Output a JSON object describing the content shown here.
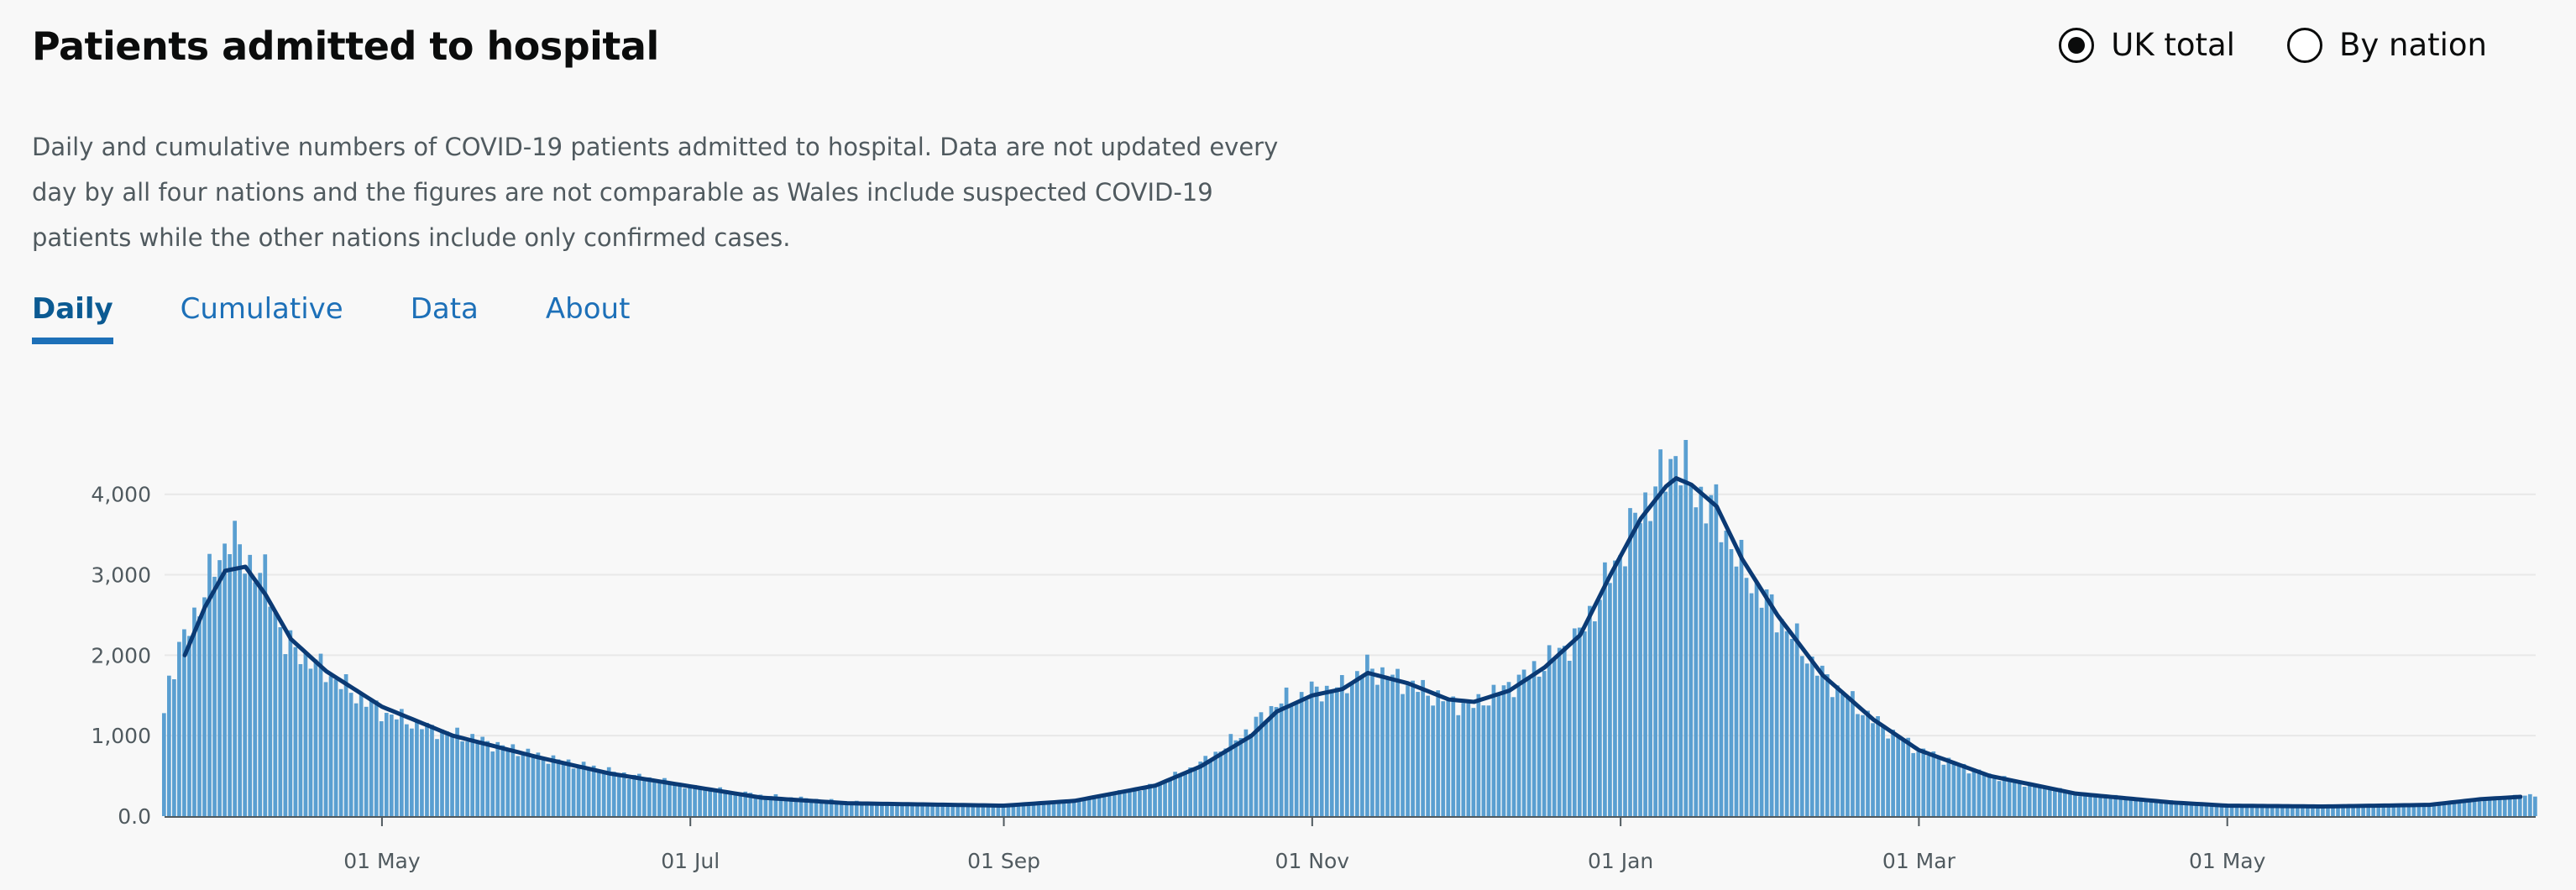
{
  "header": {
    "title": "Patients admitted to hospital",
    "radio_options": [
      {
        "label": "UK total",
        "selected": true
      },
      {
        "label": "By nation",
        "selected": false
      }
    ]
  },
  "description": "Daily and cumulative numbers of COVID-19 patients admitted to hospital. Data are not updated every day by all four nations and the figures are not comparable as Wales include suspected COVID-19 patients while the other nations include only confirmed cases.",
  "tabs": [
    {
      "label": "Daily",
      "active": true
    },
    {
      "label": "Cumulative",
      "active": false
    },
    {
      "label": "Data",
      "active": false
    },
    {
      "label": "About",
      "active": false
    }
  ],
  "colors": {
    "bars": "#5a9fd1",
    "average_line": "#0b3a74",
    "gridline": "#e8e8e8",
    "axis": "#505a5f",
    "tab_link": "#1d70b8"
  },
  "chart_data": {
    "type": "bar",
    "x_start": "2020-03-19",
    "x_end": "2021-07-01",
    "x_ticks": [
      {
        "date": "2020-05-01",
        "label": "01 May"
      },
      {
        "date": "2020-07-01",
        "label": "01 Jul"
      },
      {
        "date": "2020-09-01",
        "label": "01 Sep"
      },
      {
        "date": "2020-11-01",
        "label": "01 Nov"
      },
      {
        "date": "2021-01-01",
        "label": "01 Jan"
      },
      {
        "date": "2021-03-01",
        "label": "01 Mar"
      },
      {
        "date": "2021-05-01",
        "label": "01 May"
      }
    ],
    "y_ticks": [
      {
        "value": 0,
        "label": "0.0"
      },
      {
        "value": 1000,
        "label": "1,000"
      },
      {
        "value": 2000,
        "label": "2,000"
      },
      {
        "value": 3000,
        "label": "3,000"
      },
      {
        "value": 4000,
        "label": "4,000"
      }
    ],
    "ylim": [
      0,
      4300
    ],
    "grid": true,
    "series": [
      {
        "kind": "bars",
        "anchors": [
          [
            "2020-03-19",
            1280
          ],
          [
            "2020-03-20",
            1720
          ],
          [
            "2020-03-22",
            2050
          ],
          [
            "2020-03-25",
            2500
          ],
          [
            "2020-03-28",
            2950
          ],
          [
            "2020-03-30",
            3200
          ],
          [
            "2020-04-01",
            3550
          ],
          [
            "2020-04-03",
            3250
          ],
          [
            "2020-04-06",
            3100
          ],
          [
            "2020-04-08",
            2950
          ],
          [
            "2020-04-12",
            2150
          ],
          [
            "2020-04-18",
            1900
          ],
          [
            "2020-04-25",
            1550
          ],
          [
            "2020-05-01",
            1300
          ],
          [
            "2020-05-10",
            1100
          ],
          [
            "2020-05-20",
            950
          ],
          [
            "2020-06-01",
            750
          ],
          [
            "2020-06-15",
            560
          ],
          [
            "2020-07-01",
            370
          ],
          [
            "2020-07-15",
            260
          ],
          [
            "2020-08-01",
            180
          ],
          [
            "2020-08-15",
            140
          ],
          [
            "2020-09-01",
            130
          ],
          [
            "2020-09-15",
            190
          ],
          [
            "2020-10-01",
            380
          ],
          [
            "2020-10-10",
            650
          ],
          [
            "2020-10-20",
            1100
          ],
          [
            "2020-10-25",
            1400
          ],
          [
            "2020-11-01",
            1550
          ],
          [
            "2020-11-07",
            1600
          ],
          [
            "2020-11-12",
            1850
          ],
          [
            "2020-11-20",
            1650
          ],
          [
            "2020-11-28",
            1420
          ],
          [
            "2020-12-03",
            1380
          ],
          [
            "2020-12-10",
            1620
          ],
          [
            "2020-12-17",
            1900
          ],
          [
            "2020-12-24",
            2250
          ],
          [
            "2020-12-30",
            3000
          ],
          [
            "2021-01-05",
            3800
          ],
          [
            "2021-01-10",
            4250
          ],
          [
            "2021-01-12",
            4550
          ],
          [
            "2021-01-15",
            4100
          ],
          [
            "2021-01-20",
            3800
          ],
          [
            "2021-01-25",
            3100
          ],
          [
            "2021-02-01",
            2500
          ],
          [
            "2021-02-10",
            1750
          ],
          [
            "2021-02-20",
            1200
          ],
          [
            "2021-03-01",
            820
          ],
          [
            "2021-03-15",
            500
          ],
          [
            "2021-04-01",
            280
          ],
          [
            "2021-04-20",
            180
          ],
          [
            "2021-05-01",
            140
          ],
          [
            "2021-05-20",
            120
          ],
          [
            "2021-06-10",
            150
          ],
          [
            "2021-06-25",
            230
          ],
          [
            "2021-07-01",
            270
          ]
        ]
      },
      {
        "kind": "line",
        "anchors": [
          [
            "2020-03-23",
            2000
          ],
          [
            "2020-03-27",
            2600
          ],
          [
            "2020-03-31",
            3050
          ],
          [
            "2020-04-04",
            3100
          ],
          [
            "2020-04-08",
            2750
          ],
          [
            "2020-04-13",
            2200
          ],
          [
            "2020-04-20",
            1800
          ],
          [
            "2020-05-01",
            1360
          ],
          [
            "2020-05-15",
            1000
          ],
          [
            "2020-06-01",
            730
          ],
          [
            "2020-06-15",
            530
          ],
          [
            "2020-07-01",
            370
          ],
          [
            "2020-07-15",
            230
          ],
          [
            "2020-08-01",
            160
          ],
          [
            "2020-09-01",
            130
          ],
          [
            "2020-09-15",
            190
          ],
          [
            "2020-10-01",
            380
          ],
          [
            "2020-10-10",
            620
          ],
          [
            "2020-10-20",
            1000
          ],
          [
            "2020-10-25",
            1300
          ],
          [
            "2020-11-01",
            1500
          ],
          [
            "2020-11-07",
            1580
          ],
          [
            "2020-11-12",
            1780
          ],
          [
            "2020-11-20",
            1650
          ],
          [
            "2020-11-28",
            1450
          ],
          [
            "2020-12-03",
            1420
          ],
          [
            "2020-12-10",
            1560
          ],
          [
            "2020-12-17",
            1850
          ],
          [
            "2020-12-24",
            2250
          ],
          [
            "2020-12-30",
            3000
          ],
          [
            "2021-01-05",
            3700
          ],
          [
            "2021-01-10",
            4100
          ],
          [
            "2021-01-12",
            4200
          ],
          [
            "2021-01-15",
            4120
          ],
          [
            "2021-01-20",
            3850
          ],
          [
            "2021-01-25",
            3200
          ],
          [
            "2021-02-01",
            2500
          ],
          [
            "2021-02-10",
            1750
          ],
          [
            "2021-02-20",
            1200
          ],
          [
            "2021-03-01",
            820
          ],
          [
            "2021-03-15",
            500
          ],
          [
            "2021-04-01",
            280
          ],
          [
            "2021-04-20",
            170
          ],
          [
            "2021-05-01",
            130
          ],
          [
            "2021-05-20",
            120
          ],
          [
            "2021-06-10",
            140
          ],
          [
            "2021-06-20",
            210
          ],
          [
            "2021-06-28",
            240
          ]
        ]
      }
    ]
  }
}
